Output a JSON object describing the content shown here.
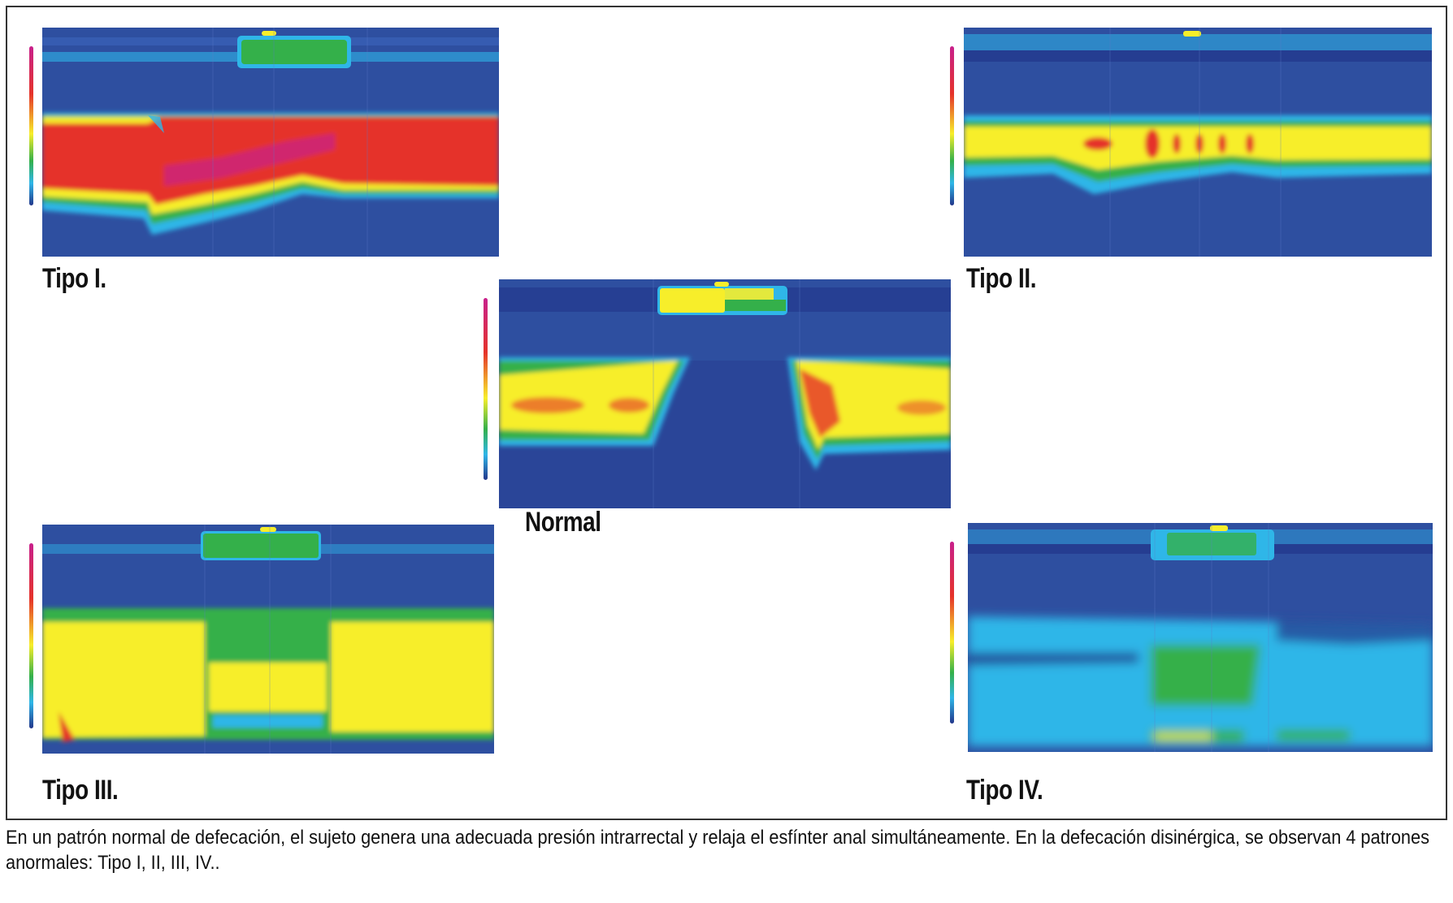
{
  "figure": {
    "panels": [
      {
        "id": "tipo1",
        "label": "Tipo I."
      },
      {
        "id": "tipo2",
        "label": "Tipo II."
      },
      {
        "id": "normal",
        "label": "Normal"
      },
      {
        "id": "tipo3",
        "label": "Tipo III."
      },
      {
        "id": "tipo4",
        "label": "Tipo IV."
      }
    ],
    "caption": "En un patrón normal de defecación, el sujeto genera una adecuada presión intrarrectal y relaja el esfínter anal simultáneamente. En la defecación disinérgica, se observan 4 patrones anormales: Tipo I, II, III, IV..",
    "colors": {
      "background_blue": "#2e4fa0",
      "dark_blue": "#22368a",
      "light_blue": "#2fb6e8",
      "green": "#34b04a",
      "yellow": "#f7ee2a",
      "red": "#e5332a",
      "magenta": "#c8208c"
    }
  }
}
